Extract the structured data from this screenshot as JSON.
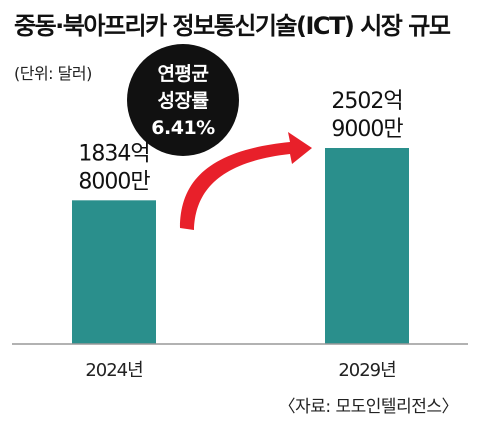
{
  "chart_data": {
    "type": "bar",
    "title": "중동·북아프리카 정보통신기술(ICT) 시장 규모",
    "unit_label": "(단위: 달러)",
    "source": "〈자료: 모도인텔리전스〉",
    "categories": [
      "2024년",
      "2029년"
    ],
    "values": [
      183480000000,
      250290000000
    ],
    "value_labels": [
      [
        "1834억",
        "8000만"
      ],
      [
        "2502억",
        "9000만"
      ]
    ],
    "growth_label": [
      "연평균",
      "성장률",
      "6.41%"
    ],
    "colors": {
      "bar": "#2a8f8c",
      "arrow": "#e8202a",
      "growth_bubble": "#111111"
    }
  }
}
